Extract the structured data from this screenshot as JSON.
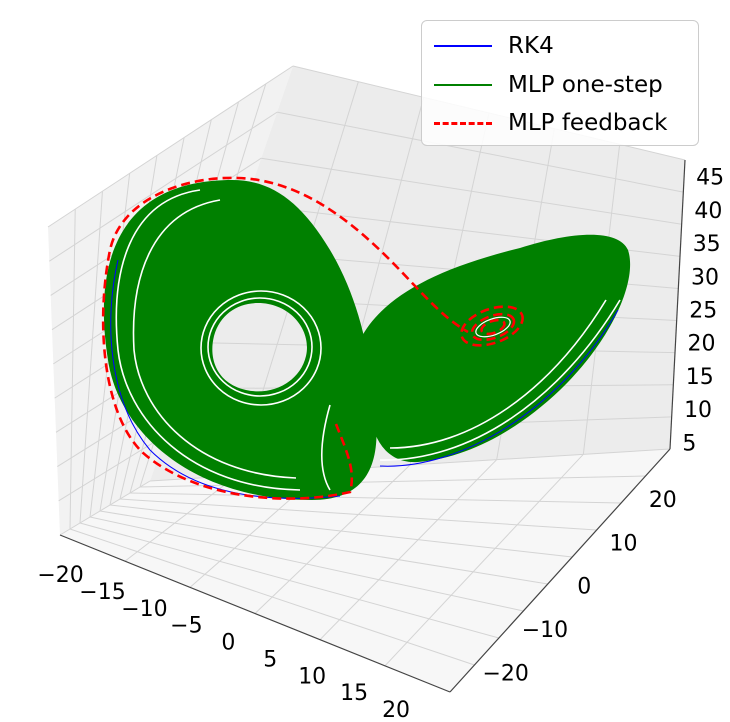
{
  "chart_data": {
    "type": "line",
    "subtype": "3d-line",
    "title": "",
    "xlabel": "",
    "ylabel": "",
    "zlabel": "",
    "xlim": [
      -22,
      22
    ],
    "ylim": [
      -28,
      28
    ],
    "zlim": [
      1,
      49
    ],
    "grid": true,
    "legend_position": "top-right",
    "x_ticks": [
      "−20",
      "−15",
      "−10",
      "−5",
      "0",
      "5",
      "10",
      "15",
      "20"
    ],
    "y_ticks": [
      "−20",
      "−10",
      "0",
      "10",
      "20"
    ],
    "z_ticks": [
      "5",
      "10",
      "15",
      "20",
      "25",
      "30",
      "35",
      "40",
      "45"
    ],
    "series": [
      {
        "name": "RK4",
        "color": "#0000ff",
        "style": "solid",
        "description_points": [
          [
            -18,
            20,
            26
          ],
          [
            -8,
            -10,
            20
          ],
          [
            0,
            0,
            27
          ],
          [
            9,
            8,
            28
          ],
          [
            16,
            12,
            36
          ]
        ]
      },
      {
        "name": "MLP one-step",
        "color": "#008000",
        "style": "solid",
        "description_points": [
          [
            -18,
            20,
            26
          ],
          [
            -8,
            -10,
            20
          ],
          [
            0,
            0,
            27
          ],
          [
            9,
            8,
            28
          ],
          [
            16,
            12,
            36
          ]
        ]
      },
      {
        "name": "MLP feedback",
        "color": "#ff0000",
        "style": "dashed",
        "description_points": [
          [
            0,
            1,
            0
          ],
          [
            -15,
            -15,
            10
          ],
          [
            -10,
            5,
            45
          ],
          [
            8,
            8,
            28
          ]
        ]
      }
    ]
  },
  "legend": {
    "items": [
      {
        "label": "RK4",
        "color": "#0000ff",
        "style": "solid"
      },
      {
        "label": "MLP one-step",
        "color": "#008000",
        "style": "solid"
      },
      {
        "label": "MLP feedback",
        "color": "#ff0000",
        "style": "dashed"
      }
    ]
  }
}
